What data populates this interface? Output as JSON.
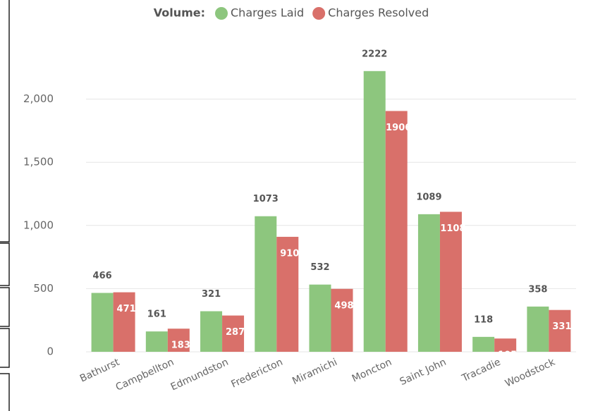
{
  "chart_data": {
    "type": "bar",
    "legend_title": "Volume:",
    "categories": [
      "Bathurst",
      "Campbellton",
      "Edmundston",
      "Fredericton",
      "Miramichi",
      "Moncton",
      "Saint John",
      "Tracadie",
      "Woodstock"
    ],
    "series": [
      {
        "name": "Charges Laid",
        "color": "#8dc67e",
        "values": [
          466,
          161,
          321,
          1073,
          532,
          2222,
          1089,
          118,
          358
        ]
      },
      {
        "name": "Charges Resolved",
        "color": "#d9706a",
        "values": [
          471,
          183,
          287,
          910,
          498,
          1906,
          1108,
          105,
          331
        ]
      }
    ],
    "ylim": [
      0,
      2500
    ],
    "yticks": [
      0,
      500,
      {
        "value": 1000,
        "label": "1,000"
      },
      {
        "value": 1500,
        "label": "1,500"
      },
      {
        "value": 2000,
        "label": "2,000"
      }
    ],
    "grid": true,
    "legend": "top"
  }
}
